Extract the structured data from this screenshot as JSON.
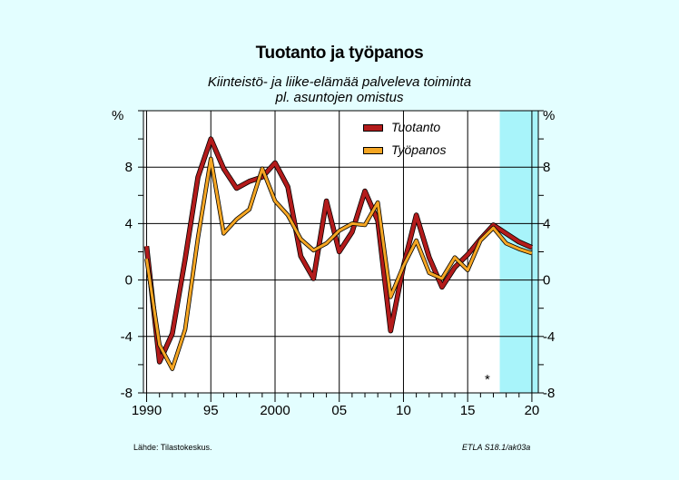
{
  "colors": {
    "background": "#e3feff",
    "plot_background": "#ffffff",
    "forecast_band": "#a8f4fa",
    "tuotanto": "#b31b1b",
    "tyopanos": "#f5a623"
  },
  "note": {
    "source": "Lähde:   Tilastokeskus.",
    "code": "ETLA S18.1/ak03a",
    "forecast_marker": "*"
  },
  "chart_data": {
    "type": "line",
    "title": "Tuotanto ja työpanos",
    "subtitle_lines": [
      "Kiinteistö- ja liike-elämää palveleva toiminta",
      "pl. asuntojen omistus"
    ],
    "ylabel_left": "%",
    "ylabel_right": "%",
    "xlim": [
      1989.75,
      2020.5
    ],
    "ylim": [
      -8,
      12
    ],
    "y_ticks": [
      -8,
      -4,
      0,
      4,
      8
    ],
    "x_tick_labels": [
      {
        "year": 1990,
        "label": "1990"
      },
      {
        "year": 1995,
        "label": "95"
      },
      {
        "year": 2000,
        "label": "2000"
      },
      {
        "year": 2005,
        "label": "05"
      },
      {
        "year": 2010,
        "label": "10"
      },
      {
        "year": 2015,
        "label": "15"
      },
      {
        "year": 2020,
        "label": "20"
      }
    ],
    "grid": true,
    "legend_position": "top-right",
    "forecast_start": 2017.5,
    "x": [
      1990,
      1991,
      1992,
      1993,
      1994,
      1995,
      1996,
      1997,
      1998,
      1999,
      2000,
      2001,
      2002,
      2003,
      2004,
      2005,
      2006,
      2007,
      2008,
      2009,
      2010,
      2011,
      2012,
      2013,
      2014,
      2015,
      2016,
      2017,
      2018,
      2019,
      2020
    ],
    "series": [
      {
        "name": "Tuotanto",
        "values": [
          2.4,
          -5.8,
          -3.8,
          1.5,
          7.3,
          10.0,
          7.9,
          6.5,
          7.0,
          7.3,
          8.3,
          6.6,
          1.7,
          0.1,
          5.6,
          2.0,
          3.4,
          6.3,
          4.2,
          -3.6,
          1.0,
          4.6,
          1.6,
          -0.5,
          0.9,
          1.8,
          2.9,
          3.9,
          3.3,
          2.7,
          2.3
        ]
      },
      {
        "name": "Työpanos",
        "values": [
          1.5,
          -4.6,
          -6.3,
          -3.5,
          3.0,
          8.6,
          3.3,
          4.3,
          5.0,
          7.9,
          5.6,
          4.6,
          2.9,
          2.1,
          2.6,
          3.5,
          4.0,
          3.9,
          5.5,
          -1.2,
          1.0,
          2.8,
          0.5,
          0.1,
          1.6,
          0.7,
          2.8,
          3.7,
          2.6,
          2.2,
          1.9
        ]
      }
    ]
  }
}
